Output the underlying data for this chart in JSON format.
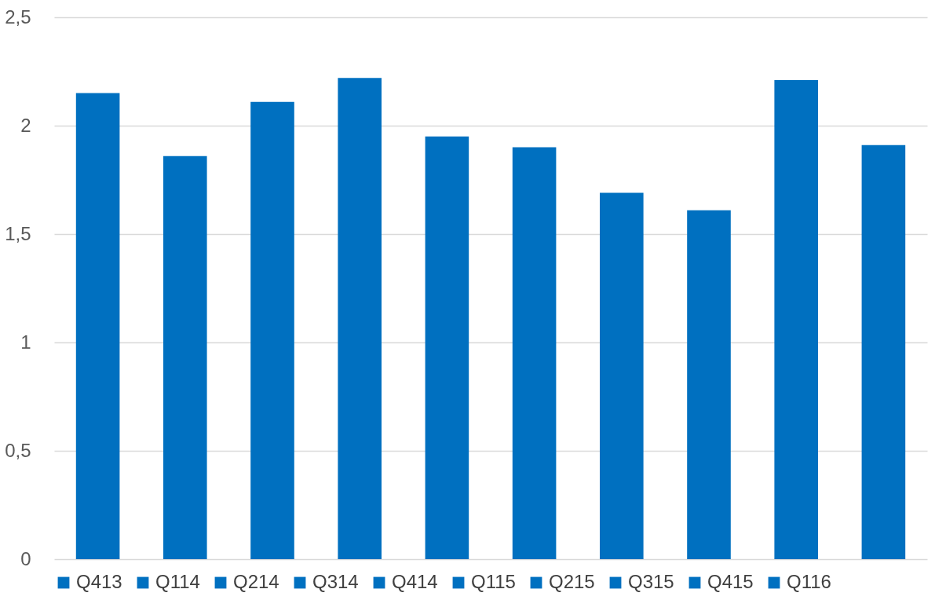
{
  "chart_data": {
    "type": "bar",
    "categories": [
      null
    ],
    "series": [
      {
        "name": "Q413",
        "color": "#0070c0",
        "values": [
          2.15
        ]
      },
      {
        "name": "Q114",
        "color": "#0070c0",
        "values": [
          1.86
        ]
      },
      {
        "name": "Q214",
        "color": "#0070c0",
        "values": [
          2.11
        ]
      },
      {
        "name": "Q314",
        "color": "#0070c0",
        "values": [
          2.22
        ]
      },
      {
        "name": "Q414",
        "color": "#0070c0",
        "values": [
          1.95
        ]
      },
      {
        "name": "Q115",
        "color": "#0070c0",
        "values": [
          1.9
        ]
      },
      {
        "name": "Q215",
        "color": "#0070c0",
        "values": [
          1.69
        ]
      },
      {
        "name": "Q315",
        "color": "#0070c0",
        "values": [
          1.61
        ]
      },
      {
        "name": "Q415",
        "color": "#0070c0",
        "values": [
          2.21
        ]
      },
      {
        "name": "Q116",
        "color": "#0070c0",
        "values": [
          1.91
        ]
      }
    ],
    "ylim": [
      0,
      2.5
    ],
    "yticks": [
      0,
      {
        "value": 0.5,
        "label": "0,5"
      },
      1,
      {
        "value": 1.5,
        "label": "1,5"
      },
      2,
      {
        "value": 2.5,
        "label": "2,5"
      }
    ],
    "grid": "y",
    "legend": "bottom",
    "tick_labels": "y"
  }
}
